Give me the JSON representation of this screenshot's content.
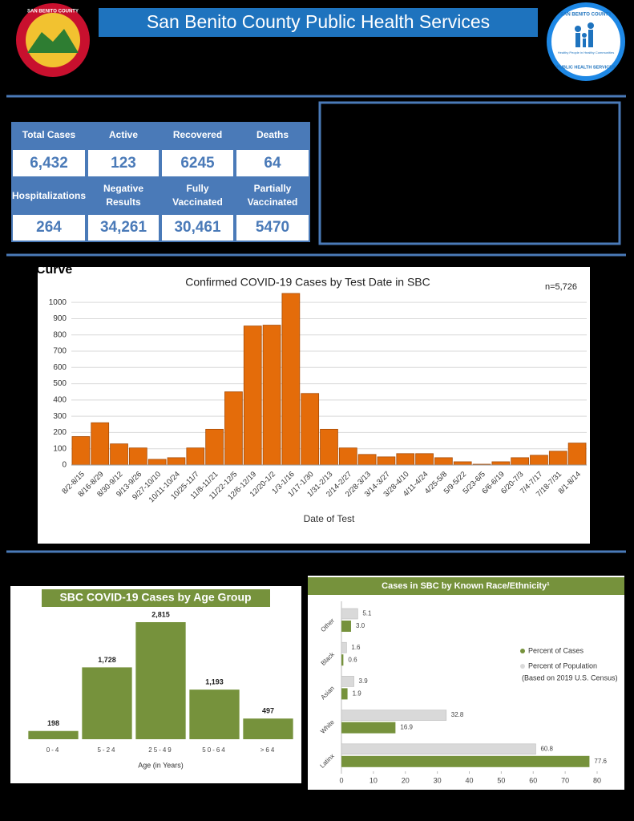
{
  "header": {
    "title": "San Benito County Public Health Services",
    "left_logo": "SAN BENITO COUNTY",
    "right_logo_top": "SAN BENITO COUNTY",
    "right_logo_motto": "Healthy People in Healthy Communities",
    "right_logo_bottom": "PUBLIC HEALTH SERVICES"
  },
  "stats": [
    {
      "label": "Total Cases",
      "value": "6,432"
    },
    {
      "label": "Active",
      "value": "123"
    },
    {
      "label": "Recovered",
      "value": "6245"
    },
    {
      "label": "Deaths",
      "value": "64"
    },
    {
      "label": "Hospitalizations",
      "value": "264"
    },
    {
      "label": "Negative Results",
      "value": "34,261"
    },
    {
      "label": "Fully Vaccinated",
      "value": "30,461"
    },
    {
      "label": "Partially Vaccinated",
      "value": "5470"
    }
  ],
  "epi_heading": ". Curve",
  "chart_data": [
    {
      "type": "bar",
      "title": "Confirmed COVID-19 Cases by Test Date in SBC",
      "annotation": "n=5,726",
      "x_label": "Date of Test",
      "categories": [
        "8/2-8/15",
        "8/16-8/29",
        "8/30-9/12",
        "9/13-9/26",
        "9/27-10/10",
        "10/11-10/24",
        "10/25-11/7",
        "11/8-11/21",
        "11/22-12/5",
        "12/6-12/19",
        "12/20-1/2",
        "1/3-1/16",
        "1/17-1/30",
        "1/31-2/13",
        "2/14-2/27",
        "2/28-3/13",
        "3/14-3/27",
        "3/28-4/10",
        "4/11-4/24",
        "4/25-5/8",
        "5/9-5/22",
        "5/23-6/5",
        "6/6-6/19",
        "6/20-7/3",
        "7/4-7/17",
        "7/18-7/31",
        "8/1-8/14"
      ],
      "values": [
        175,
        260,
        130,
        105,
        35,
        45,
        105,
        220,
        450,
        855,
        860,
        1055,
        440,
        220,
        105,
        65,
        50,
        70,
        70,
        45,
        20,
        5,
        20,
        45,
        60,
        85,
        135
      ],
      "color": "#e46c0a",
      "ylim": [
        0,
        1055
      ],
      "yticks": [
        0,
        100,
        200,
        300,
        400,
        500,
        600,
        700,
        800,
        900,
        1000
      ],
      "grid": true
    },
    {
      "type": "bar",
      "title": "SBC COVID-19 Cases by Age Group",
      "x_label": "Age (in Years)",
      "categories": [
        "0-4",
        "5-24",
        "25-49",
        "50-64",
        ">64"
      ],
      "values": [
        198,
        1728,
        2815,
        1193,
        497
      ],
      "value_labels": [
        "198",
        "1,728",
        "2,815",
        "1,193",
        "497"
      ],
      "color": "#76923c"
    },
    {
      "type": "hbar",
      "title": "Cases in SBC by Known Race/Ethnicity¹",
      "categories": [
        "Other",
        "Black",
        "Asian",
        "White",
        "Latinx"
      ],
      "series": [
        {
          "name": "Percent of Population",
          "color": "#d9d9d9",
          "values": [
            5.1,
            1.6,
            3.9,
            32.8,
            60.8
          ],
          "value_labels": [
            "5.1",
            "1.6",
            "3.9",
            "32.8",
            "60.8"
          ]
        },
        {
          "name": "Percent of Cases",
          "color": "#76923c",
          "values": [
            3.0,
            0.6,
            1.9,
            16.9,
            77.6
          ],
          "value_labels": [
            "3.0",
            "0.6",
            "1.9",
            "16.9",
            "77.6"
          ]
        }
      ],
      "legend_note": "(Based on 2019 U.S. Census)",
      "xlim": [
        0,
        80
      ],
      "xticks": [
        0,
        10,
        20,
        30,
        40,
        50,
        60,
        70,
        80
      ]
    }
  ]
}
